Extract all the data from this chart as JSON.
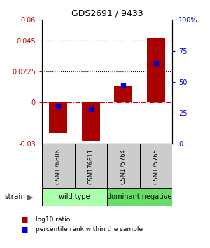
{
  "title": "GDS2691 / 9433",
  "samples": [
    "GSM176606",
    "GSM176611",
    "GSM175764",
    "GSM175765"
  ],
  "log10_ratio": [
    -0.022,
    -0.028,
    0.012,
    0.047
  ],
  "percentile_rank": [
    30,
    28,
    47,
    65
  ],
  "ylim_left": [
    -0.03,
    0.06
  ],
  "ylim_right": [
    0,
    100
  ],
  "yticks_left": [
    -0.03,
    0,
    0.0225,
    0.045,
    0.06
  ],
  "yticks_right": [
    0,
    25,
    50,
    75,
    100
  ],
  "ytick_labels_left": [
    "-0.03",
    "0",
    "0.0225",
    "0.045",
    "0.06"
  ],
  "ytick_labels_right": [
    "0",
    "25",
    "50",
    "75",
    "100%"
  ],
  "hlines": [
    0.0225,
    0.045
  ],
  "bar_color": "#aa0000",
  "dot_color": "#0000cc",
  "zero_line_color": "#cc0000",
  "groups": [
    {
      "label": "wild type",
      "samples": [
        0,
        1
      ],
      "color": "#aaffaa"
    },
    {
      "label": "dominant negative",
      "samples": [
        2,
        3
      ],
      "color": "#66dd66"
    }
  ],
  "strain_label": "strain",
  "legend_items": [
    {
      "color": "#aa0000",
      "label": "log10 ratio"
    },
    {
      "color": "#0000cc",
      "label": "percentile rank within the sample"
    }
  ],
  "background_color": "#ffffff",
  "sample_box_color": "#cccccc",
  "left_tick_color": "#cc0000",
  "right_tick_color": "#0000cc"
}
